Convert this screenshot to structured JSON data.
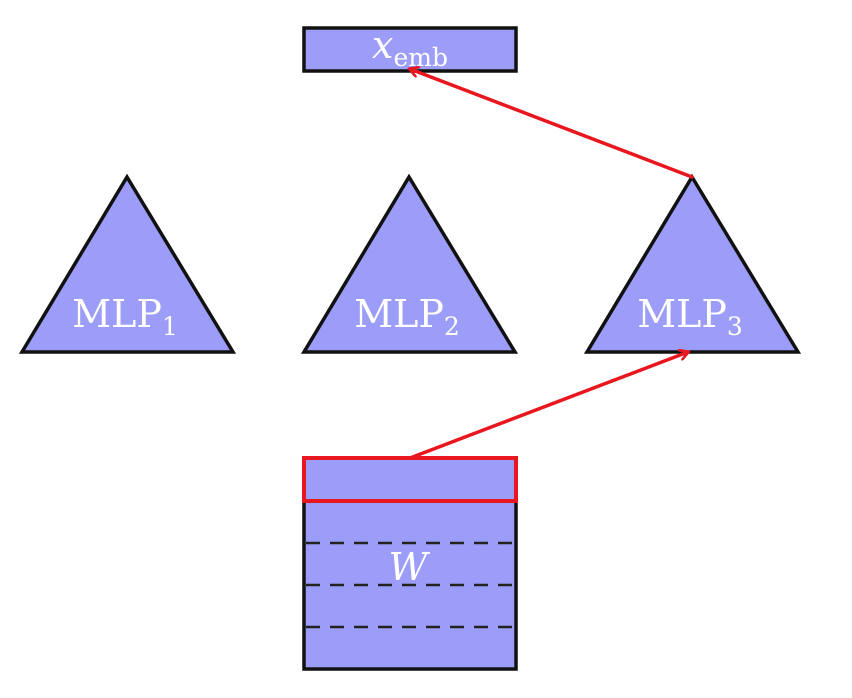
{
  "colors": {
    "fill": "#9c9cf9",
    "stroke": "#111111",
    "highlight": "#e8171f",
    "text": "#ffffff"
  },
  "embedding": {
    "symbol": "x",
    "subscript": "emb"
  },
  "mlps": [
    {
      "base": "MLP",
      "subscript": "1"
    },
    {
      "base": "MLP",
      "subscript": "2"
    },
    {
      "base": "MLP",
      "subscript": "3"
    }
  ],
  "weights": {
    "symbol": "W"
  }
}
